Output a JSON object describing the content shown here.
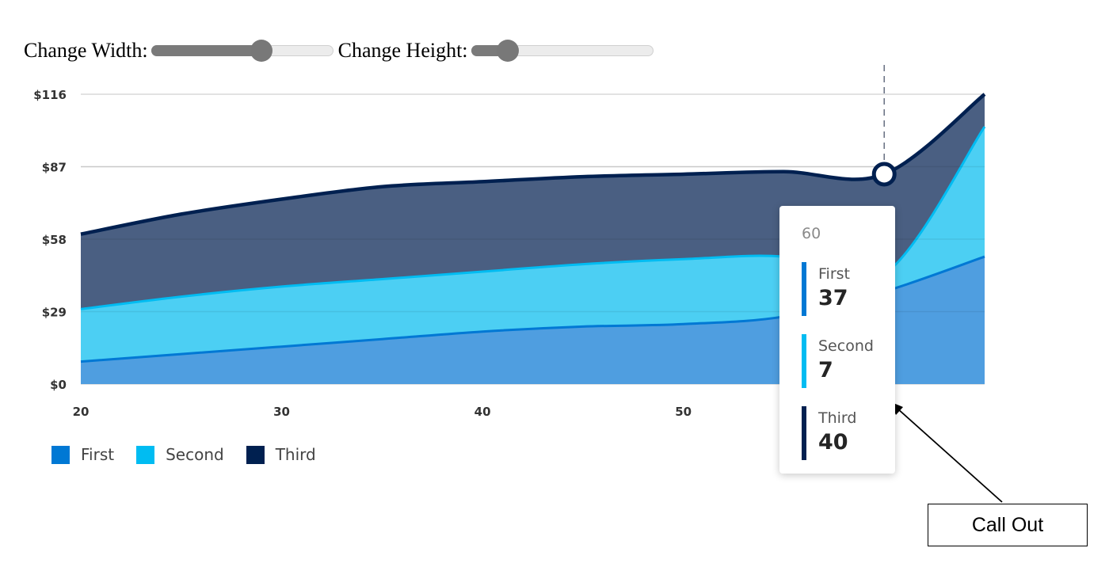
{
  "controls": {
    "width_label": "Change Width:",
    "width_value": 0.62,
    "height_label": "Change Height:",
    "height_value": 0.16
  },
  "chart_data": {
    "type": "area",
    "stacked": true,
    "x": [
      20,
      25,
      30,
      35,
      40,
      45,
      50,
      55,
      60,
      65
    ],
    "series": [
      {
        "name": "First",
        "color": "#0078d4",
        "values": [
          9,
          12,
          15,
          18,
          21,
          23,
          24,
          27,
          37,
          51
        ]
      },
      {
        "name": "Second",
        "color": "#00bcf2",
        "values": [
          21,
          23,
          24,
          24,
          24,
          25,
          26,
          24,
          7,
          52
        ]
      },
      {
        "name": "Third",
        "color": "#002050",
        "values": [
          30,
          33,
          35,
          37,
          36,
          35,
          34,
          34,
          40,
          13
        ]
      }
    ],
    "xticks": [
      "20",
      "30",
      "40",
      "50"
    ],
    "xtick_values": [
      20,
      30,
      40,
      50
    ],
    "yticks": [
      "$0",
      "$29",
      "$58",
      "$87",
      "$116"
    ],
    "ytick_values": [
      0,
      29,
      58,
      87,
      116
    ],
    "xlim": [
      20,
      65
    ],
    "ylim": [
      0,
      116
    ],
    "grid": true,
    "legend_position": "bottom-left",
    "hover_x": 60
  },
  "tooltip": {
    "x_label": "60",
    "items": [
      {
        "name": "First",
        "value": "37",
        "color": "#0078d4"
      },
      {
        "name": "Second",
        "value": "7",
        "color": "#00bcf2"
      },
      {
        "name": "Third",
        "value": "40",
        "color": "#002050"
      }
    ]
  },
  "legend": [
    {
      "label": "First",
      "color": "#0078d4"
    },
    {
      "label": "Second",
      "color": "#00bcf2"
    },
    {
      "label": "Third",
      "color": "#002050"
    }
  ],
  "annotation": {
    "label": "Call Out"
  }
}
